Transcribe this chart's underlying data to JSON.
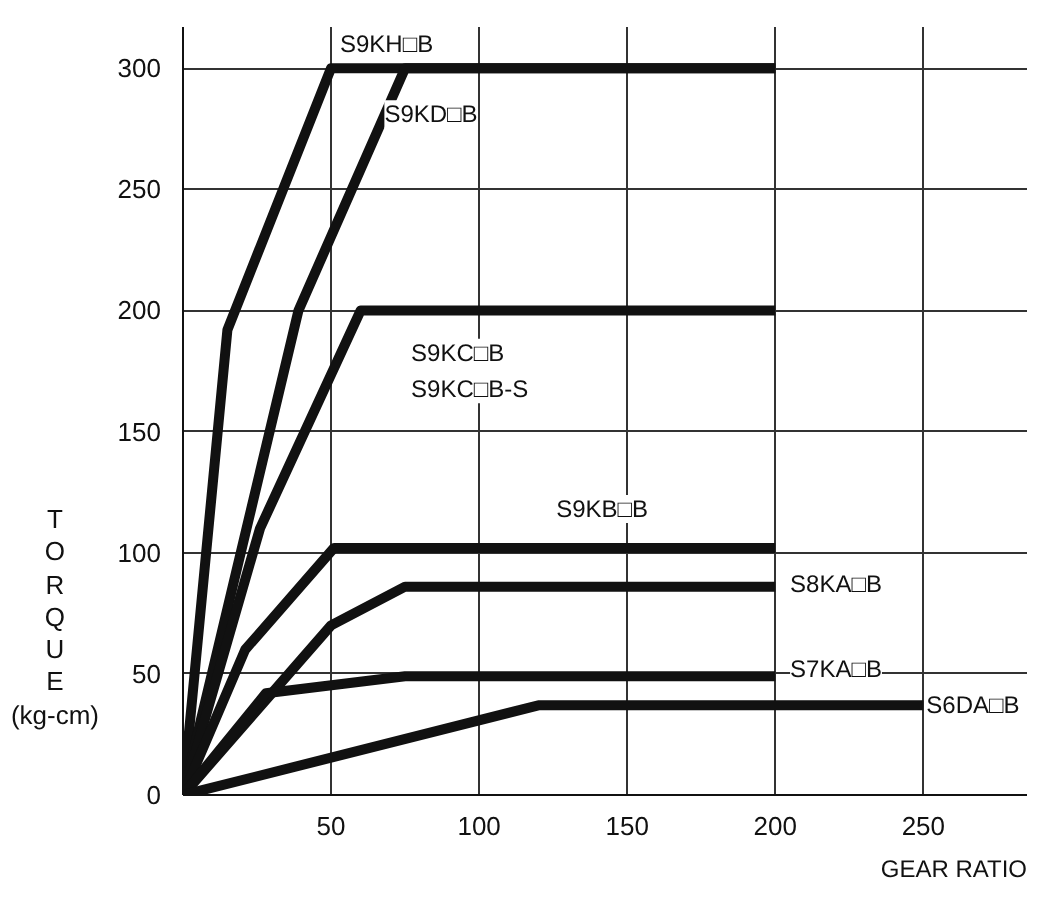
{
  "chart_data": {
    "type": "line",
    "xlabel": "GEAR RATIO",
    "ylabel": "TORQUE (kg-cm)",
    "xlim": [
      0,
      285
    ],
    "ylim": [
      0,
      317
    ],
    "xticks": [
      50,
      100,
      150,
      200,
      250
    ],
    "yticks": [
      0,
      50,
      100,
      150,
      200,
      250,
      300
    ],
    "grid": true,
    "marker": "none",
    "line_style": "solid",
    "series": [
      {
        "name": "S9KH□B",
        "color": "#111111",
        "x": [
          0,
          15,
          50,
          200
        ],
        "values": [
          0,
          192,
          300,
          300
        ]
      },
      {
        "name": "S9KD□B",
        "color": "#111111",
        "x": [
          0,
          39,
          75,
          200
        ],
        "values": [
          0,
          200,
          300,
          300
        ]
      },
      {
        "name": "S9KC□B\nS9KC□B-S",
        "color": "#111111",
        "x": [
          0,
          26,
          60,
          200
        ],
        "values": [
          0,
          110,
          200,
          200
        ]
      },
      {
        "name": "S9KB□B",
        "color": "#111111",
        "x": [
          0,
          21,
          51,
          200
        ],
        "values": [
          0,
          60,
          102,
          102
        ]
      },
      {
        "name": "S8KA□B",
        "color": "#111111",
        "x": [
          0,
          50,
          75,
          200
        ],
        "values": [
          0,
          70,
          86,
          86
        ]
      },
      {
        "name": "S7KA□B",
        "color": "#111111",
        "x": [
          0,
          28,
          75,
          200
        ],
        "values": [
          0,
          42,
          49,
          49
        ]
      },
      {
        "name": "S6DA□B",
        "color": "#111111",
        "x": [
          0,
          120,
          250
        ],
        "values": [
          0,
          37,
          37
        ]
      }
    ]
  }
}
